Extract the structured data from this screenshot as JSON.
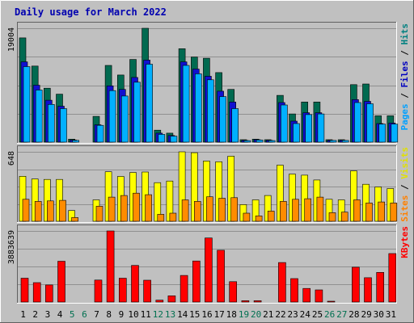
{
  "chart_data": {
    "type": "bar",
    "title": "Daily usage for March 2022",
    "categories": [
      "1",
      "2",
      "3",
      "4",
      "5",
      "6",
      "7",
      "8",
      "9",
      "10",
      "11",
      "12",
      "13",
      "14",
      "15",
      "16",
      "17",
      "18",
      "19",
      "20",
      "21",
      "22",
      "23",
      "24",
      "25",
      "26",
      "27",
      "28",
      "29",
      "30",
      "31"
    ],
    "weekend_days": [
      5,
      6,
      12,
      13,
      19,
      20,
      26,
      27
    ],
    "panels": [
      {
        "id": "hits",
        "max_label": "19004",
        "ymax": 19004,
        "legend": [
          {
            "text": "Pages",
            "color": "#00a0ff"
          },
          {
            "text": " / ",
            "color": "#000000"
          },
          {
            "text": "Files",
            "color": "#0000c0"
          },
          {
            "text": " / ",
            "color": "#000000"
          },
          {
            "text": "Hits",
            "color": "#008080"
          }
        ],
        "series": [
          {
            "name": "Hits",
            "color": "#006a50",
            "values": [
              17400,
              12700,
              9000,
              8000,
              500,
              0,
              4300,
              12800,
              11200,
              13800,
              19004,
              2000,
              1500,
              15600,
              14200,
              14000,
              11600,
              8800,
              400,
              500,
              400,
              7800,
              4700,
              6700,
              6700,
              400,
              400,
              9600,
              9700,
              4400,
              4400
            ]
          },
          {
            "name": "Files",
            "color": "#1010d0",
            "values": [
              13400,
              9500,
              7000,
              6000,
              350,
              0,
              2900,
              9400,
              8800,
              10800,
              13700,
              1500,
              1100,
              13400,
              12200,
              11000,
              8500,
              6700,
              300,
              400,
              300,
              6600,
              3500,
              4900,
              4900,
              300,
              300,
              7100,
              6800,
              3100,
              3200
            ]
          },
          {
            "name": "Pages",
            "color": "#00b0ff",
            "values": [
              12600,
              8700,
              6300,
              5600,
              300,
              0,
              2800,
              8600,
              7700,
              10000,
              13000,
              1300,
              1000,
              12800,
              11400,
              10400,
              7600,
              5600,
              250,
              350,
              250,
              6200,
              3100,
              4600,
              4700,
              280,
              280,
              6600,
              6400,
              3000,
              3000
            ]
          }
        ]
      },
      {
        "id": "visits",
        "max_label": "648",
        "ymax": 648,
        "legend": [
          {
            "text": "Sites",
            "color": "#ff8000"
          },
          {
            "text": " / ",
            "color": "#000000"
          },
          {
            "text": "Visits",
            "color": "#e0e000"
          }
        ],
        "series": [
          {
            "name": "Visits",
            "color": "#ffff00",
            "values": [
              420,
              395,
              390,
              390,
              100,
              0,
              200,
              462,
              418,
              455,
              460,
              360,
              375,
              648,
              640,
              562,
              555,
              607,
              155,
              200,
              240,
              524,
              440,
              430,
              385,
              205,
              200,
              470,
              345,
              320,
              305
            ]
          },
          {
            "name": "Sites",
            "color": "#ff8c00",
            "values": [
              205,
              185,
              190,
              195,
              35,
              0,
              140,
              225,
              240,
              262,
              248,
              65,
              75,
              200,
              185,
              228,
              215,
              220,
              75,
              50,
              95,
              185,
              205,
              210,
              225,
              80,
              85,
              200,
              170,
              180,
              170
            ]
          }
        ]
      },
      {
        "id": "kbytes",
        "max_label": "3883639",
        "ymax": 3883639,
        "legend": [
          {
            "text": "KBytes",
            "color": "#ff0000"
          }
        ],
        "series": [
          {
            "name": "KBytes",
            "color": "#ff0000",
            "values": [
              1300000,
              1060000,
              930000,
              2230000,
              0,
              0,
              1200000,
              3883639,
              1300000,
              2000000,
              1190000,
              100000,
              340000,
              1450000,
              2240000,
              3500000,
              2830000,
              1110000,
              70000,
              70000,
              0,
              2160000,
              1280000,
              740000,
              660000,
              40000,
              0,
              1900000,
              1330000,
              1620000,
              2650000
            ]
          }
        ]
      }
    ]
  }
}
